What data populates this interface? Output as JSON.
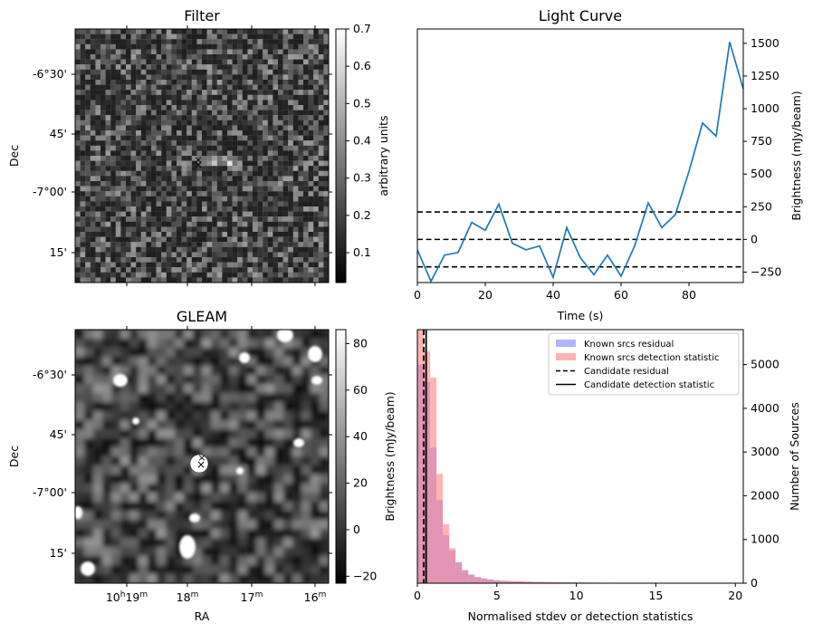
{
  "colors": {
    "lightcurve": "#1f77b4",
    "candidate_filter_marker": "#ff0000",
    "candidate_gleam_marker": "#0000cc",
    "residual_hist": "#8080ff",
    "detection_hist": "#ff8080",
    "threshold_lines": "#000000"
  },
  "panels": {
    "filter": {
      "title": "Filter",
      "ylabel": "Dec",
      "yticks": [
        "-6°30'",
        "45'",
        "-7°00'",
        "15'"
      ],
      "colorbar_label": "arbitrary units",
      "colorbar_ticks": [
        "0.1",
        "0.2",
        "0.3",
        "0.4",
        "0.5",
        "0.6",
        "0.7"
      ],
      "colorbar_range": [
        0.02,
        0.7
      ]
    },
    "gleam": {
      "title": "GLEAM",
      "ylabel": "Dec",
      "xlabel": "RA",
      "yticks": [
        "-6°30'",
        "45'",
        "-7°00'",
        "15'"
      ],
      "xticks": [
        {
          "h": "10",
          "m": "19"
        },
        {
          "h": "",
          "m": "18"
        },
        {
          "h": "",
          "m": "17"
        },
        {
          "h": "",
          "m": "16"
        }
      ],
      "colorbar_label": "Brightness (mJy/beam)",
      "colorbar_ticks": [
        "−20",
        "0",
        "20",
        "40",
        "60",
        "80"
      ],
      "colorbar_range": [
        -23,
        86
      ]
    }
  },
  "chart_data": [
    {
      "type": "line",
      "title": "Light Curve",
      "xlabel": "Time (s)",
      "ylabel": "Brightness (mJy/beam)",
      "xlim": [
        0,
        96
      ],
      "ylim": [
        -330,
        1610
      ],
      "xticks": [
        "0",
        "20",
        "40",
        "60",
        "80"
      ],
      "yticks": [
        "−250",
        "0",
        "250",
        "500",
        "750",
        "1000",
        "1250",
        "1500"
      ],
      "x": [
        0,
        4,
        8,
        12,
        16,
        20,
        24,
        28,
        32,
        36,
        40,
        44,
        48,
        52,
        56,
        60,
        64,
        68,
        72,
        76,
        80,
        84,
        88,
        92,
        96
      ],
      "series": [
        {
          "values": [
            -80,
            -320,
            -120,
            -100,
            130,
            70,
            270,
            -30,
            -80,
            -50,
            -290,
            90,
            -140,
            -270,
            -120,
            -280,
            -50,
            280,
            90,
            190,
            520,
            890,
            790,
            1510,
            1150
          ]
        }
      ],
      "hlines": [
        210,
        0,
        -210
      ]
    },
    {
      "type": "bar",
      "xlabel": "Normalised stdev or detection statistics",
      "ylabel": "Number of Sources",
      "xlim": [
        0,
        20.5
      ],
      "ylim": [
        0,
        5800
      ],
      "xticks": [
        "0",
        "5",
        "10",
        "15",
        "20"
      ],
      "yticks": [
        "0",
        "1000",
        "2000",
        "3000",
        "4000",
        "5000"
      ],
      "bin_width": 0.4,
      "series": [
        {
          "name": "Known srcs residual",
          "values": [
            5000,
            4600,
            3100,
            1900,
            1100,
            750,
            480,
            300,
            200,
            140,
            110,
            90,
            70,
            55,
            50,
            45,
            40,
            36,
            32,
            30,
            28,
            25,
            22,
            20,
            18,
            16,
            15,
            14,
            13,
            12,
            11,
            10,
            10,
            9,
            9,
            8,
            8,
            7,
            7,
            6,
            6,
            6,
            5,
            5,
            5,
            5,
            4,
            4,
            4,
            4,
            3
          ]
        },
        {
          "name": "Known srcs detection statistic",
          "values": [
            5800,
            5300,
            4700,
            2500,
            1350,
            800,
            470,
            290,
            190,
            140,
            100,
            80,
            65,
            55,
            48,
            42,
            38,
            34,
            30,
            28,
            25,
            22,
            20,
            18,
            16,
            15,
            14,
            13,
            12,
            11,
            10,
            10,
            9,
            9,
            8,
            8,
            7,
            7,
            6,
            6,
            6,
            5,
            5,
            5,
            5,
            4,
            4,
            4,
            4,
            3,
            3
          ]
        }
      ],
      "vlines": [
        {
          "name": "Candidate residual",
          "x": 0.4,
          "style": "dashed"
        },
        {
          "name": "Candidate detection statistic",
          "x": 0.55,
          "style": "solid"
        }
      ],
      "legend": "top-right"
    }
  ]
}
